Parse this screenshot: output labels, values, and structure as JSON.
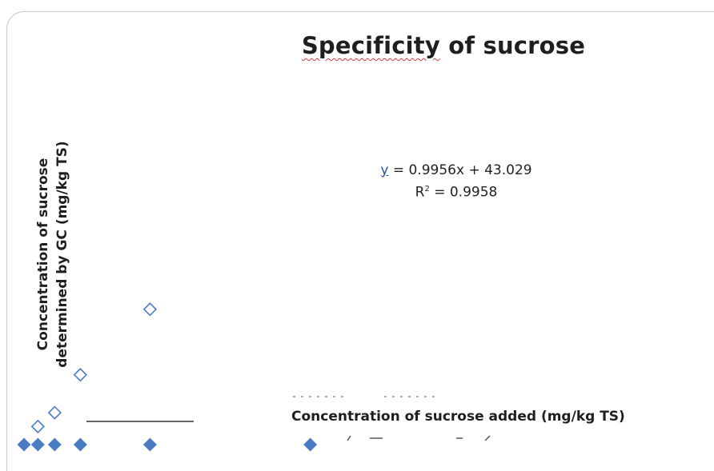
{
  "chart_data": {
    "type": "scatter",
    "title": "Specificity of sucrose",
    "title_word_1": "Specificity",
    "title_rest": " of sucrose",
    "xlabel": "Concentration of sucrose added (mg/kg TS)",
    "ylabel_line1": "Concentration of sucrose",
    "ylabel_line2": "determined by GC (mg/kg TS)",
    "equation_y": "y",
    "equation_rest": " = 0.9956x + 43.029",
    "r2_prefix": "R",
    "r2_sup": "2",
    "r2_rest": " = 0.9958",
    "xlim": [
      0,
      2000
    ],
    "ylim": [
      0,
      2000
    ],
    "series": [
      {
        "marker": "open-diamond",
        "color": "#4a7cc4",
        "x": [
          80,
          177,
          325,
          727
        ],
        "y": [
          -20,
          60,
          280,
          660
        ]
      },
      {
        "marker": "filled-diamond",
        "color": "#4a7cc4",
        "x": [
          0,
          80,
          177,
          325,
          727,
          1652
        ],
        "y": [
          -125,
          -125,
          -125,
          -125,
          -125,
          -125
        ]
      }
    ]
  }
}
